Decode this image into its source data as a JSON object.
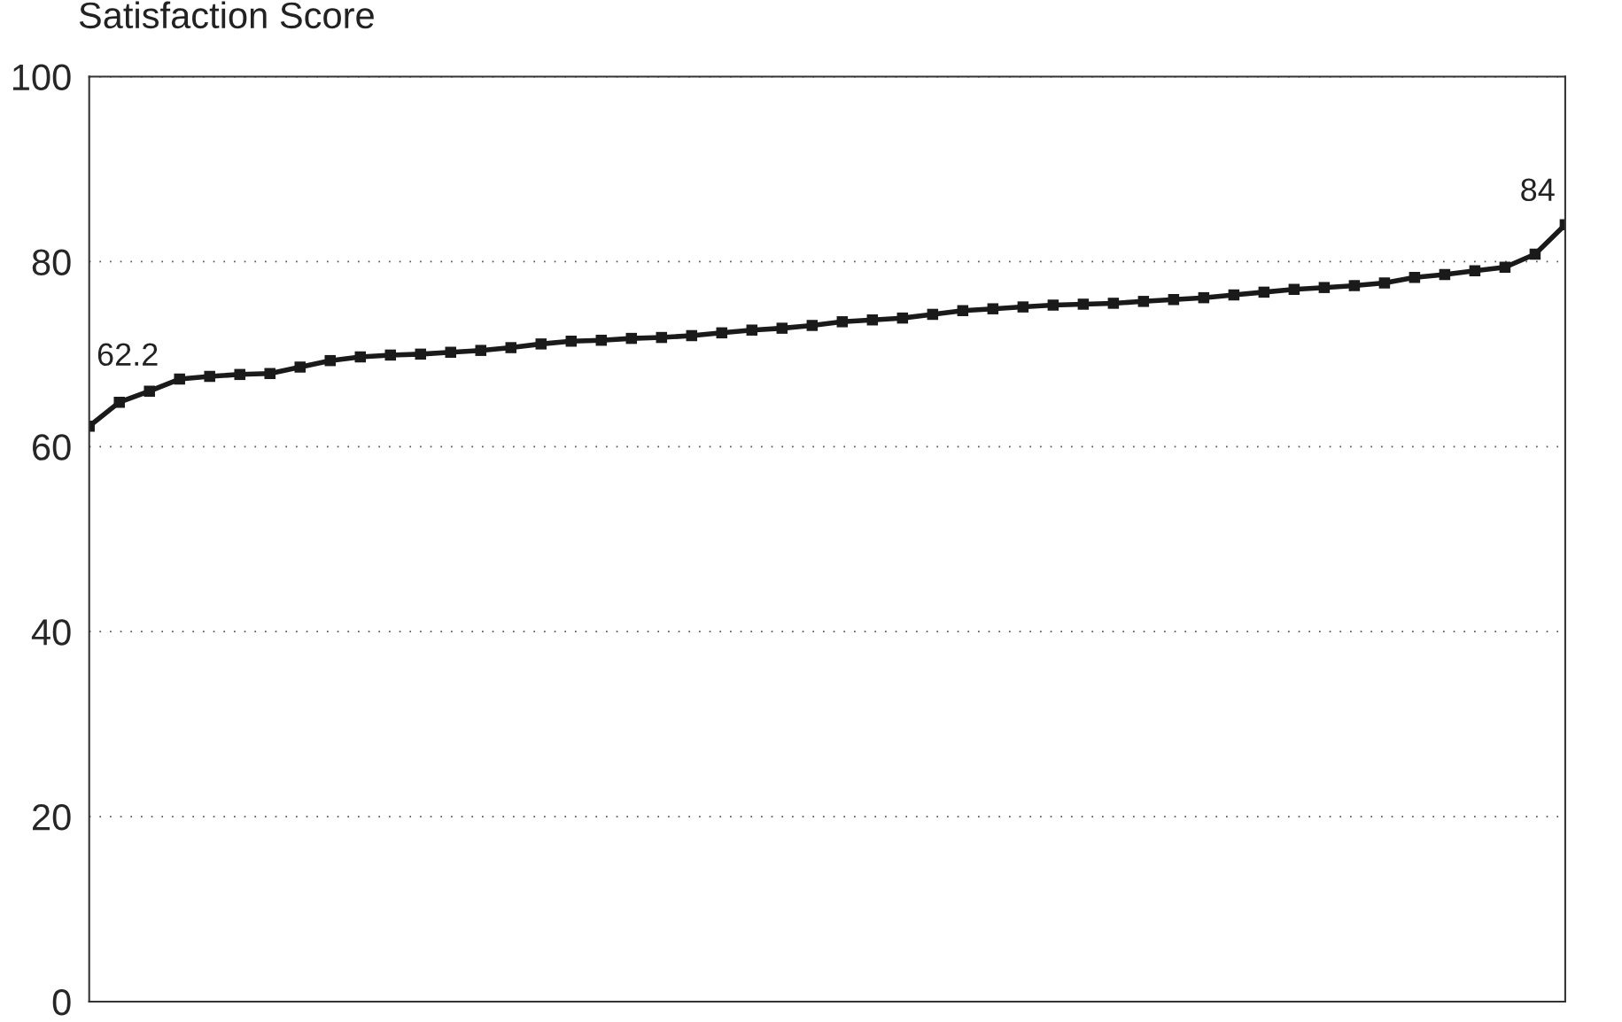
{
  "chart_data": {
    "type": "line",
    "ylabel": "Satisfaction Score",
    "categories": [
      null,
      null,
      null,
      null,
      null,
      null,
      null,
      null,
      null,
      null,
      null,
      null,
      null,
      null,
      null,
      null,
      null,
      null,
      null,
      null,
      null,
      null,
      null,
      null,
      null,
      null,
      null,
      null,
      null,
      null,
      null,
      null,
      null,
      null,
      null,
      null,
      null,
      null,
      null,
      null,
      null,
      null,
      null,
      null,
      null,
      null,
      null,
      null,
      null,
      null
    ],
    "series": [
      {
        "color": "#1a1a1a",
        "values": [
          62.2,
          64.8,
          66.0,
          67.3,
          67.6,
          67.8,
          67.9,
          68.6,
          69.3,
          69.7,
          69.9,
          70.0,
          70.2,
          70.4,
          70.7,
          71.1,
          71.4,
          71.5,
          71.7,
          71.8,
          72.0,
          72.3,
          72.6,
          72.8,
          73.1,
          73.5,
          73.7,
          73.9,
          74.3,
          74.7,
          74.9,
          75.1,
          75.3,
          75.4,
          75.5,
          75.7,
          75.9,
          76.1,
          76.4,
          76.7,
          77.0,
          77.2,
          77.4,
          77.7,
          78.3,
          78.6,
          79.0,
          79.4,
          80.8,
          84.0
        ],
        "value_labels": [
          "62.2",
          null,
          null,
          null,
          null,
          null,
          null,
          null,
          null,
          null,
          null,
          null,
          null,
          null,
          null,
          null,
          null,
          null,
          null,
          null,
          null,
          null,
          null,
          null,
          null,
          null,
          null,
          null,
          null,
          null,
          null,
          null,
          null,
          null,
          null,
          null,
          null,
          null,
          null,
          null,
          null,
          null,
          null,
          null,
          null,
          null,
          null,
          null,
          null,
          "84"
        ]
      }
    ],
    "ylim": [
      0,
      100
    ],
    "yticks": [
      0,
      20,
      40,
      60,
      80,
      100
    ],
    "grid": "y",
    "marker": "square",
    "line_style": "solid",
    "tick_labels": "y"
  }
}
